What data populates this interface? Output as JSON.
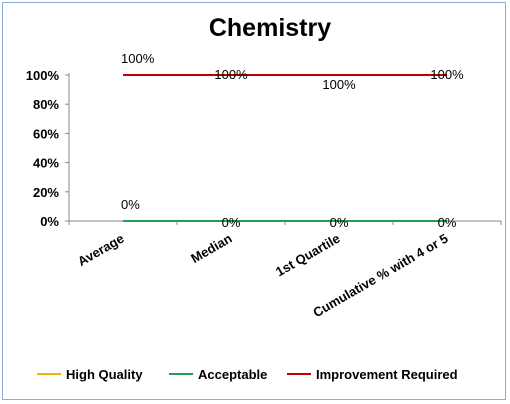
{
  "chart_data": {
    "type": "line",
    "title": "Chemistry",
    "categories": [
      "Average",
      "Median",
      "1st Quartile",
      "Cumulative % with 4 or 5"
    ],
    "ylim": [
      0,
      100
    ],
    "yticks": [
      "0%",
      "20%",
      "40%",
      "60%",
      "80%",
      "100%"
    ],
    "ytick_values": [
      0,
      20,
      40,
      60,
      80,
      100
    ],
    "grid": false,
    "legend_position": "bottom",
    "series": [
      {
        "name": "High Quality",
        "color": "#f0b400",
        "values": [
          0,
          0,
          0,
          0
        ],
        "labels": [
          "",
          "",
          "",
          ""
        ]
      },
      {
        "name": "Acceptable",
        "color": "#22a050",
        "values": [
          0,
          0,
          0,
          0
        ],
        "labels": [
          "0%",
          "0%",
          "0%",
          "0%"
        ]
      },
      {
        "name": "Improvement Required",
        "color": "#c00000",
        "values": [
          100,
          100,
          100,
          100
        ],
        "labels": [
          "100%",
          "100%",
          "100%",
          "100%"
        ]
      }
    ]
  }
}
